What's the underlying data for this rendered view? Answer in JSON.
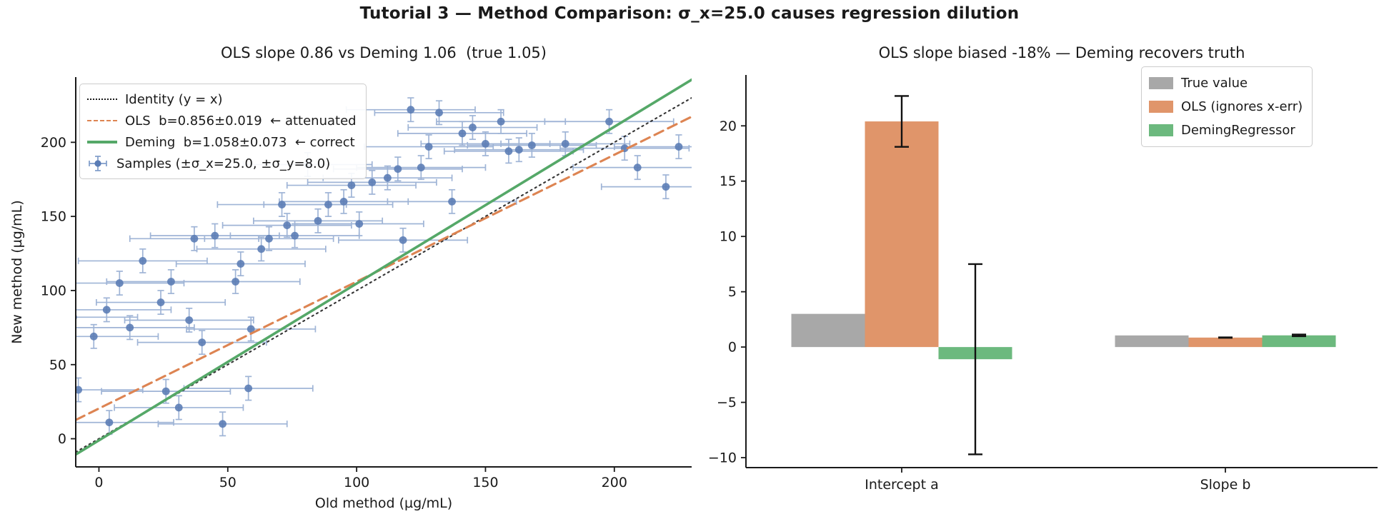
{
  "figure": {
    "title": "Tutorial 3 — Method Comparison: σ_x=25.0 causes regression dilution",
    "background": "#ffffff",
    "text_color": "#1a1a1a"
  },
  "chart_data": [
    {
      "id": "comparison-scatter",
      "type": "scatter",
      "title": "OLS slope 0.86 vs Deming 1.06  (true 1.05)",
      "xlabel": "Old method (µg/mL)",
      "ylabel": "New method (µg/mL)",
      "xlim": [
        -9,
        230
      ],
      "ylim": [
        -19,
        244
      ],
      "xticks": {
        "values": [
          0,
          50,
          100,
          150,
          200
        ],
        "labels": [
          "0",
          "50",
          "100",
          "150",
          "200"
        ]
      },
      "yticks": {
        "values": [
          0,
          50,
          100,
          150,
          200
        ],
        "labels": [
          "0",
          "50",
          "100",
          "150",
          "200"
        ]
      },
      "grid": false,
      "legend_position": "upper left",
      "lines": [
        {
          "name": "identity",
          "label": "Identity (y = x)",
          "slope": 1.0,
          "intercept": 0.0,
          "style": "dotted",
          "color": "#1a1a1a",
          "width": 2.1
        },
        {
          "name": "ols",
          "label": "OLS  b=0.856±0.019  ← attenuated",
          "slope": 0.856,
          "intercept": 20.4,
          "style": "dashed",
          "color": "#dd8452",
          "width": 3.1
        },
        {
          "name": "deming",
          "label": "Deming  b=1.058±0.073  ← correct",
          "slope": 1.058,
          "intercept": -1.1,
          "style": "solid",
          "color": "#55a868",
          "width": 3.6
        }
      ],
      "samples": {
        "label": "Samples (±σ_x=25.0, ±σ_y=8.0)",
        "xerr": 25.0,
        "yerr": 8.0,
        "marker_color": "#5a7cb5",
        "errorbar_color": "#7f9cc9",
        "points": [
          [
            -10,
            82
          ],
          [
            -8,
            33
          ],
          [
            -2,
            69
          ],
          [
            3,
            87
          ],
          [
            4,
            11
          ],
          [
            8,
            105
          ],
          [
            12,
            75
          ],
          [
            17,
            120
          ],
          [
            24,
            92
          ],
          [
            26,
            32
          ],
          [
            28,
            106
          ],
          [
            31,
            21
          ],
          [
            35,
            80
          ],
          [
            37,
            135
          ],
          [
            40,
            65
          ],
          [
            45,
            137
          ],
          [
            48,
            10
          ],
          [
            53,
            106
          ],
          [
            55,
            118
          ],
          [
            58,
            34
          ],
          [
            59,
            74
          ],
          [
            63,
            128
          ],
          [
            66,
            135
          ],
          [
            71,
            158
          ],
          [
            73,
            144
          ],
          [
            76,
            137
          ],
          [
            81,
            185
          ],
          [
            85,
            147
          ],
          [
            89,
            158
          ],
          [
            95,
            160
          ],
          [
            98,
            171
          ],
          [
            101,
            145
          ],
          [
            106,
            173
          ],
          [
            112,
            176
          ],
          [
            116,
            182
          ],
          [
            118,
            134
          ],
          [
            121,
            222
          ],
          [
            125,
            183
          ],
          [
            128,
            197
          ],
          [
            132,
            220
          ],
          [
            137,
            160
          ],
          [
            141,
            206
          ],
          [
            145,
            210
          ],
          [
            150,
            199
          ],
          [
            156,
            214
          ],
          [
            159,
            194
          ],
          [
            163,
            195
          ],
          [
            168,
            198
          ],
          [
            181,
            199
          ],
          [
            198,
            214
          ],
          [
            204,
            196
          ],
          [
            209,
            183
          ],
          [
            220,
            170
          ],
          [
            225,
            197
          ]
        ]
      }
    },
    {
      "id": "coefficient-bars",
      "type": "bar",
      "title": "OLS slope biased -18% — Deming recovers truth",
      "categories": [
        "Intercept a",
        "Slope b"
      ],
      "series": [
        {
          "name": "True value",
          "color": "#a8a8a8",
          "values": [
            3.0,
            1.05
          ],
          "errors": [
            null,
            null
          ]
        },
        {
          "name": "OLS (ignores x-err)",
          "color": "#e0956a",
          "values": [
            20.4,
            0.856
          ],
          "errors": [
            2.3,
            0.019
          ]
        },
        {
          "name": "DemingRegressor",
          "color": "#6cb97e",
          "values": [
            -1.1,
            1.058
          ],
          "errors": [
            8.6,
            0.073
          ]
        }
      ],
      "yticks": {
        "values": [
          20,
          15,
          10,
          5,
          0,
          -5,
          -10
        ],
        "labels": [
          "20",
          "15",
          "10",
          "5",
          "0",
          "−5",
          "−10"
        ]
      },
      "ylim": [
        -10.9,
        24.6
      ],
      "grid": false,
      "legend_position": "upper right",
      "errorbar_color": "#111111"
    }
  ]
}
